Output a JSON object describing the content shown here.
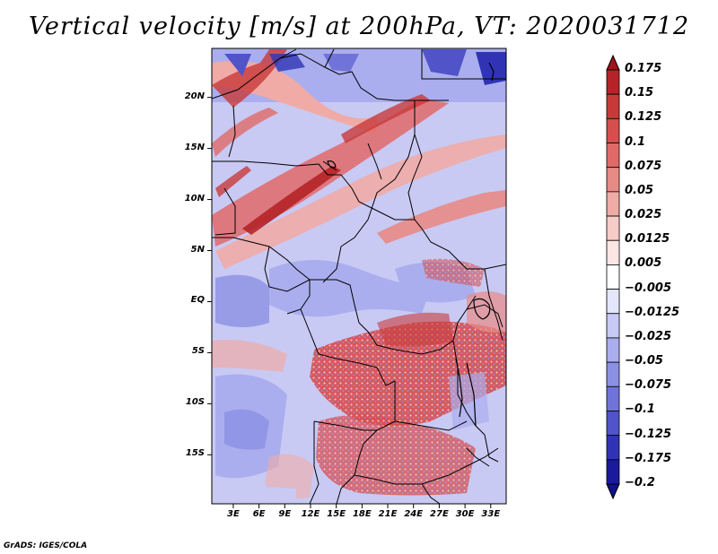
{
  "title": "Vertical velocity [m/s] at 200hPa, VT: 2020031712",
  "footer": "GrADS: IGES/COLA",
  "lat_ticks": [
    {
      "label": "20N",
      "value": 20
    },
    {
      "label": "15N",
      "value": 15
    },
    {
      "label": "10N",
      "value": 10
    },
    {
      "label": "5N",
      "value": 5
    },
    {
      "label": "EQ",
      "value": 0
    },
    {
      "label": "5S",
      "value": -5
    },
    {
      "label": "10S",
      "value": -10
    },
    {
      "label": "15S",
      "value": -15
    }
  ],
  "lon_ticks": [
    {
      "label": "3E",
      "value": 3
    },
    {
      "label": "6E",
      "value": 6
    },
    {
      "label": "9E",
      "value": 9
    },
    {
      "label": "12E",
      "value": 12
    },
    {
      "label": "15E",
      "value": 15
    },
    {
      "label": "18E",
      "value": 18
    },
    {
      "label": "21E",
      "value": 21
    },
    {
      "label": "24E",
      "value": 24
    },
    {
      "label": "27E",
      "value": 27
    },
    {
      "label": "30E",
      "value": 30
    },
    {
      "label": "33E",
      "value": 33
    }
  ],
  "map_extent": {
    "lon_min": 0.5,
    "lon_max": 34.8,
    "lat_min": -19.8,
    "lat_max": 24.8
  },
  "colorbar": {
    "levels": [
      "0.175",
      "0.15",
      "0.125",
      "0.1",
      "0.075",
      "0.05",
      "0.025",
      "0.0125",
      "0.005",
      "−0.005",
      "−0.0125",
      "−0.025",
      "−0.05",
      "−0.075",
      "−0.1",
      "−0.125",
      "−0.175",
      "−0.2"
    ],
    "colors": [
      "#a0141c",
      "#b42428",
      "#c83a3a",
      "#d64e4e",
      "#e06a68",
      "#e88a86",
      "#f0aba6",
      "#f6ccc8",
      "#fbe6e4",
      "#ffffff",
      "#e4e6fb",
      "#c8caf4",
      "#aaaeee",
      "#8c90e4",
      "#7074d8",
      "#5054c8",
      "#3034b4",
      "#1a1a9c",
      "#10108c"
    ]
  }
}
